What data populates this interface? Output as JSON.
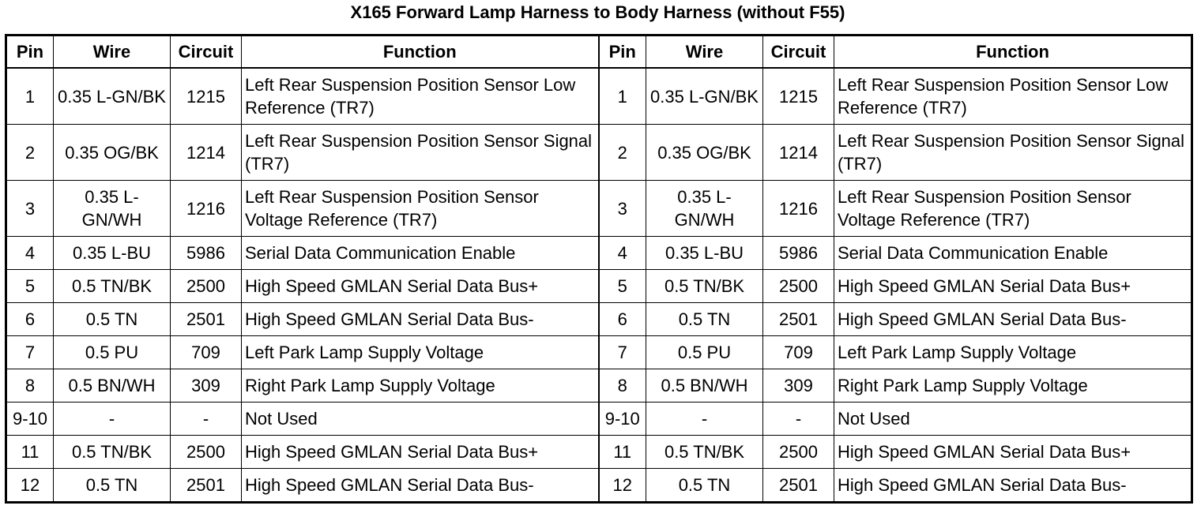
{
  "title": "X165 Forward Lamp Harness to Body Harness (without F55)",
  "headers": {
    "pin": "Pin",
    "wire": "Wire",
    "circuit": "Circuit",
    "function": "Function"
  },
  "rows": [
    {
      "pin": "1",
      "wire": "0.35 L-GN/BK",
      "circuit": "1215",
      "function": "Left Rear Suspension Position Sensor Low Reference (TR7)"
    },
    {
      "pin": "2",
      "wire": "0.35 OG/BK",
      "circuit": "1214",
      "function": "Left Rear Suspension Position Sensor Signal (TR7)"
    },
    {
      "pin": "3",
      "wire": "0.35 L-GN/WH",
      "circuit": "1216",
      "function": "Left Rear Suspension Position Sensor Voltage Reference (TR7)"
    },
    {
      "pin": "4",
      "wire": "0.35 L-BU",
      "circuit": "5986",
      "function": "Serial Data Communication Enable"
    },
    {
      "pin": "5",
      "wire": "0.5 TN/BK",
      "circuit": "2500",
      "function": "High Speed GMLAN Serial Data Bus+"
    },
    {
      "pin": "6",
      "wire": "0.5 TN",
      "circuit": "2501",
      "function": "High Speed GMLAN Serial Data Bus-"
    },
    {
      "pin": "7",
      "wire": "0.5 PU",
      "circuit": "709",
      "function": "Left Park Lamp Supply Voltage"
    },
    {
      "pin": "8",
      "wire": "0.5 BN/WH",
      "circuit": "309",
      "function": "Right Park Lamp Supply Voltage"
    },
    {
      "pin": "9-10",
      "wire": "-",
      "circuit": "-",
      "function": "Not Used"
    },
    {
      "pin": "11",
      "wire": "0.5 TN/BK",
      "circuit": "2500",
      "function": "High Speed GMLAN Serial Data Bus+"
    },
    {
      "pin": "12",
      "wire": "0.5 TN",
      "circuit": "2501",
      "function": "High Speed GMLAN Serial Data Bus-"
    }
  ]
}
